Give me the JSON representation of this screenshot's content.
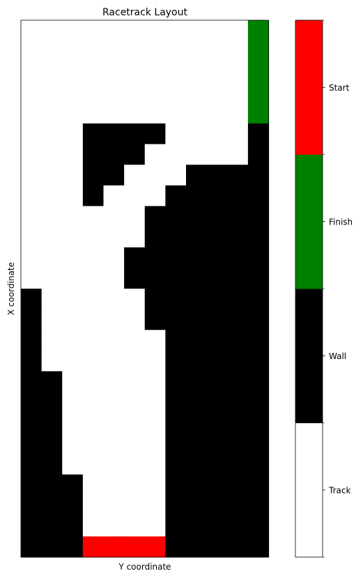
{
  "chart_data": {
    "type": "heatmap",
    "title": "Racetrack Layout",
    "xlabel": "Y coordinate",
    "ylabel": "X coordinate",
    "grid": false,
    "rows": 26,
    "cols": 12,
    "legend": "colorbar-right",
    "colorbar": {
      "ticks": [
        "Track",
        "Wall",
        "Finish",
        "Start"
      ],
      "colors": [
        "#ffffff",
        "#000000",
        "#008000",
        "#ff0000"
      ]
    },
    "cell_codes": {
      "track": 0,
      "wall": 1,
      "finish": 2,
      "start": 3
    },
    "grid_values": [
      [
        0,
        0,
        0,
        0,
        0,
        0,
        0,
        0,
        0,
        0,
        0,
        2
      ],
      [
        0,
        0,
        0,
        0,
        0,
        0,
        0,
        0,
        0,
        0,
        0,
        2
      ],
      [
        0,
        0,
        0,
        0,
        0,
        0,
        0,
        0,
        0,
        0,
        0,
        2
      ],
      [
        0,
        0,
        0,
        0,
        0,
        0,
        0,
        0,
        0,
        0,
        0,
        2
      ],
      [
        0,
        0,
        0,
        0,
        0,
        0,
        0,
        0,
        0,
        0,
        0,
        2
      ],
      [
        0,
        0,
        0,
        1,
        1,
        1,
        1,
        0,
        0,
        0,
        0,
        1
      ],
      [
        0,
        0,
        0,
        1,
        1,
        1,
        0,
        0,
        0,
        0,
        0,
        1
      ],
      [
        0,
        0,
        0,
        1,
        1,
        0,
        0,
        0,
        1,
        1,
        1,
        1
      ],
      [
        0,
        0,
        0,
        1,
        0,
        0,
        0,
        1,
        1,
        1,
        1,
        1
      ],
      [
        0,
        0,
        0,
        0,
        0,
        0,
        1,
        1,
        1,
        1,
        1,
        1
      ],
      [
        0,
        0,
        0,
        0,
        0,
        0,
        1,
        1,
        1,
        1,
        1,
        1
      ],
      [
        0,
        0,
        0,
        0,
        0,
        1,
        1,
        1,
        1,
        1,
        1,
        1
      ],
      [
        0,
        0,
        0,
        0,
        0,
        1,
        1,
        1,
        1,
        1,
        1,
        1
      ],
      [
        1,
        0,
        0,
        0,
        0,
        0,
        1,
        1,
        1,
        1,
        1,
        1
      ],
      [
        1,
        0,
        0,
        0,
        0,
        0,
        1,
        1,
        1,
        1,
        1,
        1
      ],
      [
        1,
        0,
        0,
        0,
        0,
        0,
        0,
        1,
        1,
        1,
        1,
        1
      ],
      [
        1,
        0,
        0,
        0,
        0,
        0,
        0,
        1,
        1,
        1,
        1,
        1
      ],
      [
        1,
        1,
        0,
        0,
        0,
        0,
        0,
        1,
        1,
        1,
        1,
        1
      ],
      [
        1,
        1,
        0,
        0,
        0,
        0,
        0,
        1,
        1,
        1,
        1,
        1
      ],
      [
        1,
        1,
        0,
        0,
        0,
        0,
        0,
        1,
        1,
        1,
        1,
        1
      ],
      [
        1,
        1,
        0,
        0,
        0,
        0,
        0,
        1,
        1,
        1,
        1,
        1
      ],
      [
        1,
        1,
        0,
        0,
        0,
        0,
        0,
        1,
        1,
        1,
        1,
        1
      ],
      [
        1,
        1,
        1,
        0,
        0,
        0,
        0,
        1,
        1,
        1,
        1,
        1
      ],
      [
        1,
        1,
        1,
        0,
        0,
        0,
        0,
        1,
        1,
        1,
        1,
        1
      ],
      [
        1,
        1,
        1,
        0,
        0,
        0,
        0,
        1,
        1,
        1,
        1,
        1
      ],
      [
        1,
        1,
        1,
        3,
        3,
        3,
        3,
        1,
        1,
        1,
        1,
        1
      ]
    ]
  }
}
